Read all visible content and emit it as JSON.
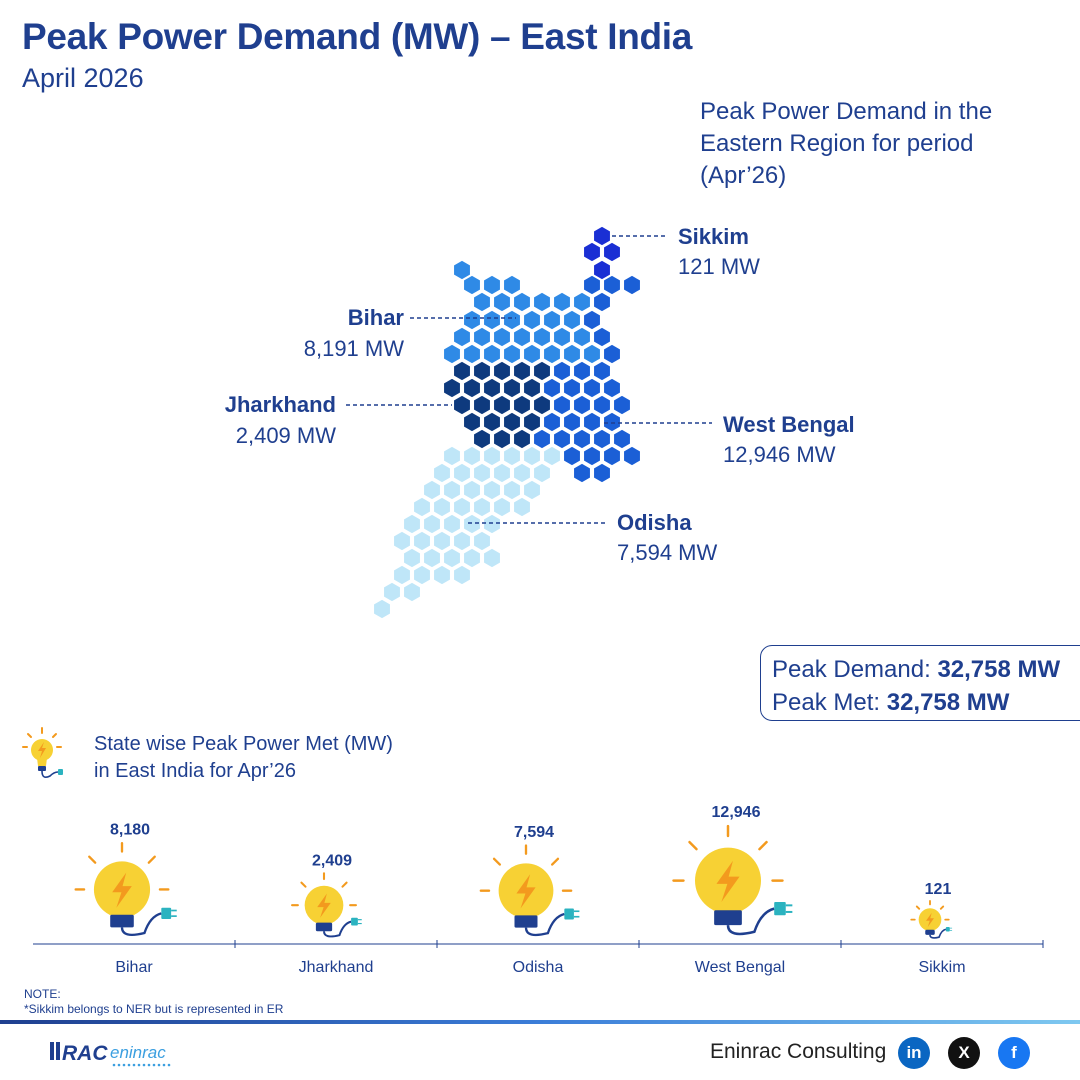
{
  "header": {
    "title": "Peak Power Demand (MW) – East India",
    "subtitle": "April 2026"
  },
  "map": {
    "heading_lines": [
      "Peak Power Demand in the",
      "Eastern Region for period",
      "(Apr’26)"
    ],
    "regions": [
      {
        "id": "sikkim",
        "name": "Sikkim",
        "value_label": "121 MW",
        "value": 121,
        "color": "#1a2fd4"
      },
      {
        "id": "bihar",
        "name": "Bihar",
        "value_label": "8,191 MW",
        "value": 8191,
        "color": "#2f8ae6"
      },
      {
        "id": "jharkhand",
        "name": "Jharkhand",
        "value_label": "2,409 MW",
        "value": 2409,
        "color": "#0e3a7e"
      },
      {
        "id": "west-bengal",
        "name": "West Bengal",
        "value_label": "12,946 MW",
        "value": 12946,
        "color": "#1b5fd6"
      },
      {
        "id": "odisha",
        "name": "Odisha",
        "value_label": "7,594 MW",
        "value": 7594,
        "color": "#bfe6f8"
      }
    ]
  },
  "totals": {
    "demand_label": "Peak Demand:",
    "demand_value": "32,758 MW",
    "met_label": "Peak Met:",
    "met_value": "32,758 MW"
  },
  "chart_data": {
    "type": "bar",
    "title": "State wise Peak Power Met (MW) in East India for Apr’26",
    "title_lines": [
      "State wise Peak Power Met (MW)",
      "in East India for Apr’26"
    ],
    "categories": [
      "Bihar",
      "Jharkhand",
      "Odisha",
      "West Bengal",
      "Sikkim"
    ],
    "values": [
      8180,
      2409,
      7594,
      12946,
      121
    ],
    "value_labels": [
      "8,180",
      "2,409",
      "7,594",
      "12,946",
      "121"
    ],
    "mark": "lightbulb-icon",
    "colors": {
      "bulb": "#f7d134",
      "bolt": "#f39a1e",
      "cord": "#1f3f8f",
      "plug": "#2bb3c0"
    }
  },
  "note": {
    "heading": "NOTE:",
    "text": "*Sikkim belongs to NER but is represented in ER"
  },
  "footer": {
    "logo_text": "RACeninrac",
    "company": "Eninrac Consulting",
    "social": [
      {
        "id": "linkedin",
        "label": "in",
        "color": "#0a66c2"
      },
      {
        "id": "x",
        "label": "X",
        "color": "#111111"
      },
      {
        "id": "facebook",
        "label": "f",
        "color": "#1877f2"
      }
    ]
  }
}
